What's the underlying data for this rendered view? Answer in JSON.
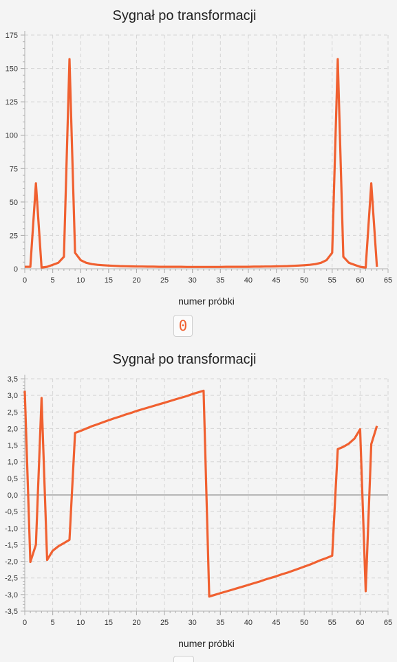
{
  "toggle_button": {
    "label": "0"
  },
  "chart_data": [
    {
      "type": "line",
      "title": "Sygnał po transformacji",
      "xlabel": "numer próbki",
      "ylabel": "",
      "xlim": [
        0,
        65
      ],
      "ylim": [
        0,
        175
      ],
      "xticks": [
        "0",
        "5",
        "10",
        "15",
        "20",
        "25",
        "30",
        "35",
        "40",
        "45",
        "50",
        "55",
        "60",
        "65"
      ],
      "yticks": [
        "0",
        "25",
        "50",
        "75",
        "100",
        "125",
        "150",
        "175"
      ],
      "grid": true,
      "series": [
        {
          "x": [
            0,
            1,
            2,
            3,
            4,
            5,
            6,
            7,
            8,
            9,
            10,
            11,
            12,
            13,
            14,
            15,
            16,
            17,
            18,
            19,
            20,
            21,
            22,
            23,
            24,
            25,
            26,
            27,
            28,
            29,
            30,
            31,
            32,
            33,
            34,
            35,
            36,
            37,
            38,
            39,
            40,
            41,
            42,
            43,
            44,
            45,
            46,
            47,
            48,
            49,
            50,
            51,
            52,
            53,
            54,
            55,
            56,
            57,
            58,
            59,
            60,
            61,
            62,
            63
          ],
          "values": [
            1.5,
            1.5,
            64,
            1,
            1.5,
            3,
            4.5,
            9,
            157,
            12,
            6.5,
            4.5,
            3.5,
            3,
            2.7,
            2.4,
            2.2,
            2,
            1.9,
            1.8,
            1.7,
            1.7,
            1.6,
            1.6,
            1.5,
            1.5,
            1.5,
            1.5,
            1.5,
            1.4,
            1.4,
            1.4,
            1.4,
            1.4,
            1.4,
            1.4,
            1.5,
            1.5,
            1.5,
            1.5,
            1.5,
            1.6,
            1.6,
            1.7,
            1.7,
            1.8,
            1.9,
            2,
            2.2,
            2.4,
            2.7,
            3,
            3.5,
            4.5,
            6.5,
            12,
            157,
            9,
            4.5,
            3,
            1.5,
            1,
            64,
            1.5
          ]
        }
      ]
    },
    {
      "type": "line",
      "title": "Sygnał po transformacji",
      "xlabel": "numer próbki",
      "ylabel": "",
      "xlim": [
        0,
        65
      ],
      "ylim": [
        -3.5,
        3.5
      ],
      "xticks": [
        "0",
        "5",
        "10",
        "15",
        "20",
        "25",
        "30",
        "35",
        "40",
        "45",
        "50",
        "55",
        "60",
        "65"
      ],
      "yticks": [
        "-3,5",
        "-3,0",
        "-2,5",
        "-2,0",
        "-1,5",
        "-1,0",
        "-0,5",
        "0,0",
        "0,5",
        "1,0",
        "1,5",
        "2,0",
        "2,5",
        "3,0",
        "3,5"
      ],
      "grid": true,
      "series": [
        {
          "x": [
            0,
            1,
            2,
            3,
            4,
            5,
            6,
            7,
            8,
            9,
            10,
            11,
            12,
            13,
            14,
            15,
            16,
            17,
            18,
            19,
            20,
            21,
            22,
            23,
            24,
            25,
            26,
            27,
            28,
            29,
            30,
            31,
            32,
            33,
            34,
            35,
            36,
            37,
            38,
            39,
            40,
            41,
            42,
            43,
            44,
            45,
            46,
            47,
            48,
            49,
            50,
            51,
            52,
            53,
            54,
            55,
            56,
            57,
            58,
            59,
            60,
            61,
            62,
            63
          ],
          "values": [
            3.14,
            -2.02,
            -1.5,
            2.92,
            -1.96,
            -1.68,
            -1.55,
            -1.45,
            -1.35,
            1.87,
            1.93,
            2,
            2.07,
            2.13,
            2.19,
            2.25,
            2.31,
            2.36,
            2.42,
            2.47,
            2.53,
            2.58,
            2.63,
            2.68,
            2.73,
            2.78,
            2.83,
            2.88,
            2.93,
            2.98,
            3.04,
            3.09,
            3.14,
            -3.06,
            -3.01,
            -2.96,
            -2.91,
            -2.86,
            -2.81,
            -2.76,
            -2.71,
            -2.66,
            -2.61,
            -2.55,
            -2.5,
            -2.45,
            -2.39,
            -2.34,
            -2.28,
            -2.22,
            -2.16,
            -2.1,
            -2.03,
            -1.96,
            -1.9,
            -1.83,
            1.38,
            1.45,
            1.55,
            1.7,
            1.98,
            -2.9,
            1.53,
            2.08
          ]
        }
      ]
    }
  ]
}
